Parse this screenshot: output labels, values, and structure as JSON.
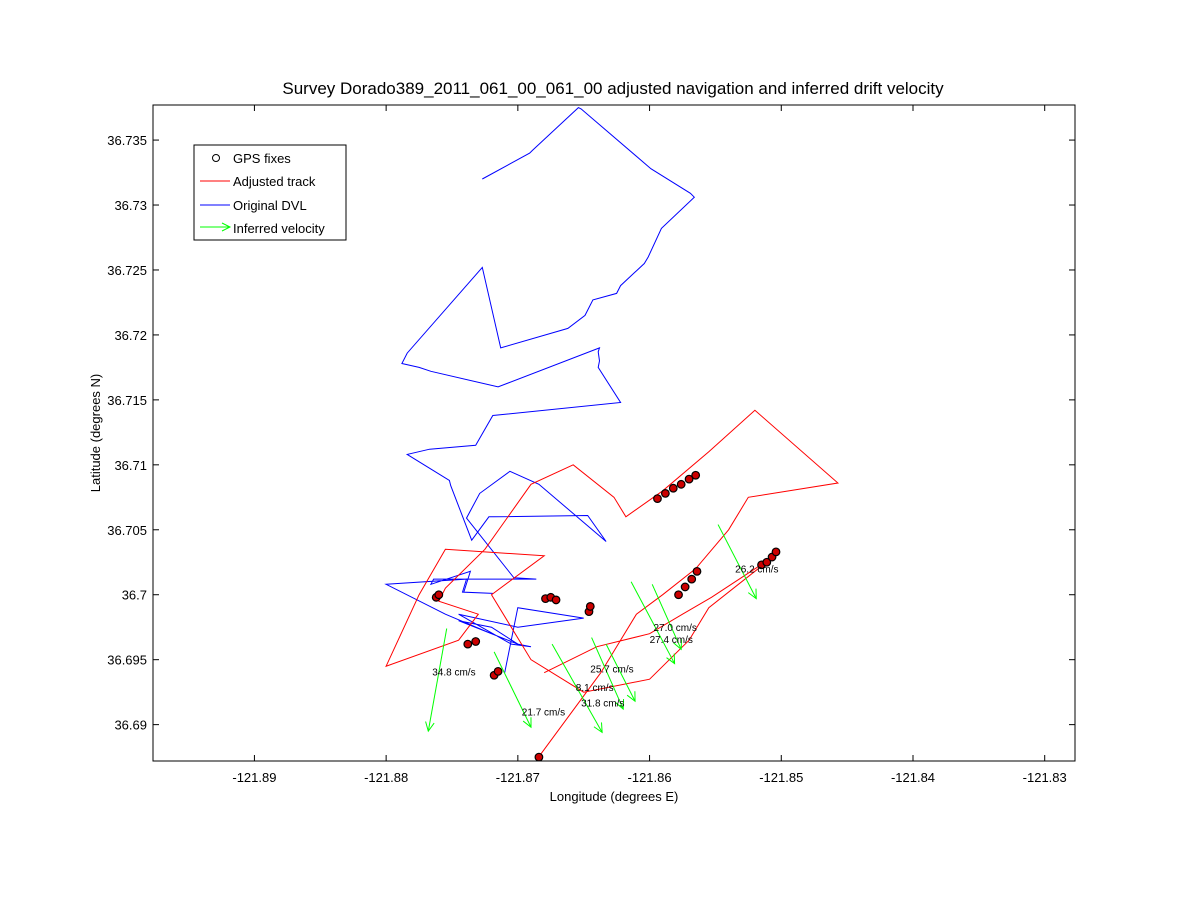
{
  "chart_data": {
    "type": "line",
    "title": "Survey Dorado389_2011_061_00_061_00 adjusted navigation and inferred drift velocity",
    "xlabel": "Longitude (degrees E)",
    "ylabel": "Latitude (degrees N)",
    "xlim": [
      -121.8977,
      -121.8277
    ],
    "ylim": [
      36.6872,
      36.7377
    ],
    "xticks": [
      -121.89,
      -121.88,
      -121.87,
      -121.86,
      -121.85,
      -121.84,
      -121.83
    ],
    "xtick_labels": [
      "-121.89",
      "-121.88",
      "-121.87",
      "-121.86",
      "-121.85",
      "-121.84",
      "-121.83"
    ],
    "yticks": [
      36.69,
      36.695,
      36.7,
      36.705,
      36.71,
      36.715,
      36.72,
      36.725,
      36.73,
      36.735
    ],
    "ytick_labels": [
      "36.69",
      "36.695",
      "36.7",
      "36.705",
      "36.71",
      "36.715",
      "36.72",
      "36.725",
      "36.73",
      "36.735"
    ],
    "grid": false,
    "legend": {
      "placement": "top-left",
      "entries": [
        {
          "label": "GPS fixes",
          "marker": "circle",
          "color": "#000000"
        },
        {
          "label": "Adjusted track",
          "marker": "line",
          "color": "#ff0000"
        },
        {
          "label": "Original DVL",
          "marker": "line",
          "color": "#0000ff"
        },
        {
          "label": "Inferred velocity",
          "marker": "arrow",
          "color": "#00ff00"
        }
      ]
    },
    "series": [
      {
        "name": "Original DVL",
        "color": "#0000ff",
        "x": [
          -121.8727,
          -121.8691,
          -121.8689,
          -121.8654,
          -121.8652,
          -121.8599,
          -121.8569,
          -121.8566,
          -121.8591,
          -121.8601,
          -121.8604,
          -121.8622,
          -121.8625,
          -121.8643,
          -121.8649,
          -121.8662,
          -121.8713,
          -121.8727,
          -121.8784,
          -121.8788,
          -121.8775,
          -121.8766,
          -121.8715,
          -121.8638,
          -121.8639,
          -121.8638,
          -121.8639,
          -121.8622,
          -121.8719,
          -121.8732,
          -121.8767,
          -121.8784,
          -121.8752,
          -121.8751,
          -121.8735,
          -121.8722,
          -121.8718,
          -121.8647,
          -121.8633,
          -121.8684,
          -121.8706,
          -121.8729,
          -121.8739,
          -121.8703,
          -121.8686,
          -121.8691,
          -121.8764,
          -121.8766,
          -121.8736,
          -121.8741,
          -121.8719,
          -121.8742,
          -121.8739,
          -121.88,
          -121.8755,
          -121.872,
          -121.87,
          -121.8745,
          -121.872,
          -121.87,
          -121.869,
          -121.8705,
          -121.8745,
          -121.87,
          -121.865,
          -121.87,
          -121.871
        ],
        "y": [
          36.732,
          36.734,
          36.7342,
          36.7375,
          36.7374,
          36.7328,
          36.7309,
          36.7306,
          36.7282,
          36.726,
          36.7255,
          36.7238,
          36.7232,
          36.7227,
          36.7215,
          36.7205,
          36.719,
          36.7252,
          36.7186,
          36.7178,
          36.7175,
          36.7172,
          36.716,
          36.719,
          36.7187,
          36.718,
          36.7175,
          36.7148,
          36.7138,
          36.7115,
          36.7112,
          36.7108,
          36.7088,
          36.7084,
          36.7042,
          36.706,
          36.706,
          36.7061,
          36.7041,
          36.7085,
          36.7095,
          36.7078,
          36.7059,
          36.7013,
          36.7012,
          36.7012,
          36.7012,
          36.7008,
          36.7018,
          36.7002,
          36.7001,
          36.7002,
          36.7012,
          36.7008,
          36.6985,
          36.697,
          36.6962,
          36.698,
          36.6975,
          36.6962,
          36.696,
          36.6962,
          36.6985,
          36.6975,
          36.6982,
          36.699,
          36.694
        ]
      },
      {
        "name": "Adjusted track",
        "color": "#ff0000",
        "x": [
          -121.8685,
          -121.8637,
          -121.861,
          -121.859,
          -121.8565,
          -121.854,
          -121.8525,
          -121.8457,
          -121.852,
          -121.8555,
          -121.859,
          -121.8618,
          -121.8627,
          -121.8658,
          -121.869,
          -121.8725,
          -121.8755,
          -121.876,
          -121.873,
          -121.8745,
          -121.88,
          -121.8775,
          -121.8755,
          -121.868,
          -121.872,
          -121.869,
          -121.865,
          -121.86,
          -121.857,
          -121.8555,
          -121.852,
          -121.8505,
          -121.8553,
          -121.8575,
          -121.86,
          -121.864,
          -121.868
        ],
        "y": [
          36.6874,
          36.694,
          36.6985,
          36.7,
          36.702,
          36.705,
          36.7075,
          36.7086,
          36.7142,
          36.711,
          36.708,
          36.706,
          36.7075,
          36.71,
          36.7085,
          36.7035,
          36.7005,
          36.6995,
          36.6985,
          36.6965,
          36.6945,
          36.7,
          36.7035,
          36.703,
          36.7,
          36.695,
          36.6925,
          36.6935,
          36.6965,
          36.699,
          36.7018,
          36.703,
          36.6998,
          36.6985,
          36.697,
          36.696,
          36.694
        ]
      }
    ],
    "gps_fixes": {
      "name": "GPS fixes",
      "color": "#000000",
      "fill": "#cc0000",
      "groups": [
        {
          "x": [
            -121.8594,
            -121.8588,
            -121.8582,
            -121.8576,
            -121.857,
            -121.8565
          ],
          "y": [
            36.7074,
            36.7078,
            36.7082,
            36.7085,
            36.7089,
            36.7092
          ]
        },
        {
          "x": [
            -121.8578,
            -121.8573,
            -121.8568,
            -121.8564
          ],
          "y": [
            36.7,
            36.7006,
            36.7012,
            36.7018
          ]
        },
        {
          "x": [
            -121.8515,
            -121.8511,
            -121.8507,
            -121.8504
          ],
          "y": [
            36.7023,
            36.7025,
            36.7029,
            36.7033
          ]
        },
        {
          "x": [
            -121.8762,
            -121.876
          ],
          "y": [
            36.6998,
            36.7
          ]
        },
        {
          "x": [
            -121.8679,
            -121.8675,
            -121.8671
          ],
          "y": [
            36.6997,
            36.6998,
            36.6996
          ]
        },
        {
          "x": [
            -121.8646,
            -121.8645
          ],
          "y": [
            36.6987,
            36.6991
          ]
        },
        {
          "x": [
            -121.8738,
            -121.8732
          ],
          "y": [
            36.6962,
            36.6964
          ]
        },
        {
          "x": [
            -121.8718,
            -121.8715
          ],
          "y": [
            36.6938,
            36.6941
          ]
        },
        {
          "x": [
            -121.8684
          ],
          "y": [
            36.6875
          ]
        }
      ]
    },
    "inferred_velocity": {
      "name": "Inferred velocity",
      "color": "#00ff00",
      "arrows": [
        {
          "x": -121.8754,
          "y": 36.6974,
          "dx": -0.0014,
          "dy": -0.0079
        },
        {
          "x": -121.8718,
          "y": 36.6956,
          "dx": 0.0028,
          "dy": -0.0058
        },
        {
          "x": -121.8674,
          "y": 36.6962,
          "dx": 0.0038,
          "dy": -0.0068
        },
        {
          "x": -121.8644,
          "y": 36.6967,
          "dx": 0.0024,
          "dy": -0.0055
        },
        {
          "x": -121.8633,
          "y": 36.6962,
          "dx": 0.0022,
          "dy": -0.0044
        },
        {
          "x": -121.8614,
          "y": 36.701,
          "dx": 0.0033,
          "dy": -0.0063
        },
        {
          "x": -121.8598,
          "y": 36.7008,
          "dx": 0.0022,
          "dy": -0.005
        },
        {
          "x": -121.8548,
          "y": 36.7054,
          "dx": 0.0029,
          "dy": -0.0057
        }
      ],
      "labels": [
        {
          "text": "34.8 cm/s",
          "x": -121.8765,
          "y": 36.6938
        },
        {
          "text": "21.7 cm/s",
          "x": -121.8697,
          "y": 36.6907
        },
        {
          "text": "31.8 cm/s",
          "x": -121.8652,
          "y": 36.6914
        },
        {
          "text": "8.1 cm/s",
          "x": -121.8656,
          "y": 36.6926
        },
        {
          "text": "25.7 cm/s",
          "x": -121.8645,
          "y": 36.694
        },
        {
          "text": "27.0 cm/s",
          "x": -121.8597,
          "y": 36.6972
        },
        {
          "text": "27.4 cm/s",
          "x": -121.86,
          "y": 36.6963
        },
        {
          "text": "26.2 cm/s",
          "x": -121.8535,
          "y": 36.7017
        }
      ]
    }
  }
}
